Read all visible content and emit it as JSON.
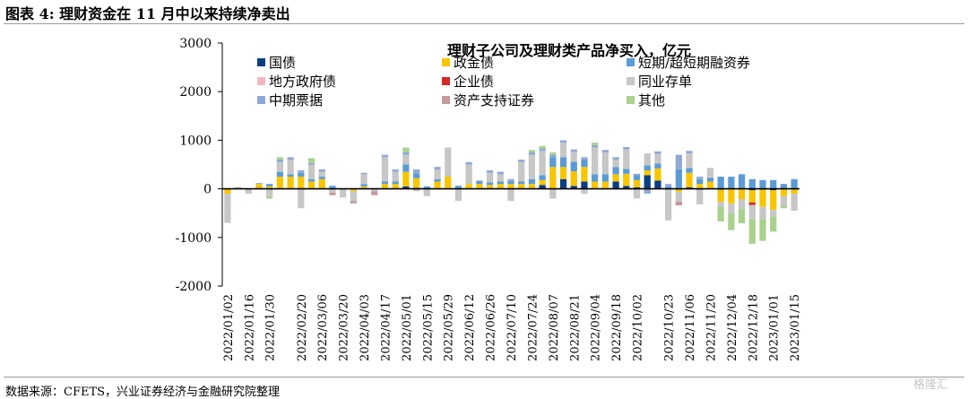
{
  "figure_label": "图表 4:  理财资金在 11 月中以来持续净卖出",
  "source_note": "数据来源：CFETS，兴业证券经济与金融研究院整理",
  "watermark": "格隆汇",
  "chart_data": {
    "type": "bar",
    "stacked": true,
    "title": "理财子公司及理财类产品净买入，亿元",
    "xlabel": "",
    "ylabel": "",
    "ylim": [
      -2000,
      3000
    ],
    "yticks": [
      -2000,
      -1000,
      0,
      1000,
      2000,
      3000
    ],
    "grid": false,
    "legend_position": "top",
    "categories": [
      "2022/01/02",
      "2022/01/09",
      "2022/01/16",
      "2022/01/23",
      "2022/01/30",
      "2022/02/06",
      "2022/02/13",
      "2022/02/20",
      "2022/02/27",
      "2022/03/06",
      "2022/03/13",
      "2022/03/20",
      "2022/03/27",
      "2022/04/03",
      "2022/04/10",
      "2022/04/17",
      "2022/04/24",
      "2022/05/01",
      "2022/05/08",
      "2022/05/15",
      "2022/05/22",
      "2022/05/29",
      "2022/06/05",
      "2022/06/12",
      "2022/06/19",
      "2022/06/26",
      "2022/07/03",
      "2022/07/10",
      "2022/07/17",
      "2022/07/24",
      "2022/07/31",
      "2022/08/07",
      "2022/08/14",
      "2022/08/21",
      "2022/08/28",
      "2022/09/04",
      "2022/09/11",
      "2022/09/18",
      "2022/09/25",
      "2022/10/02",
      "2022/10/09",
      "2022/10/16",
      "2022/10/23",
      "2022/10/30",
      "2022/11/06",
      "2022/11/13",
      "2022/11/20",
      "2022/11/27",
      "2022/12/04",
      "2022/12/11",
      "2022/12/18",
      "2022/12/25",
      "2023/01/01",
      "2023/01/08",
      "2023/01/15"
    ],
    "tick_labels": [
      "2022/01/02",
      "2022/01/16",
      "2022/01/30",
      "2022/02/20",
      "2022/03/06",
      "2022/03/20",
      "2022/04/03",
      "2022/04/17",
      "2022/05/01",
      "2022/05/15",
      "2022/05/29",
      "2022/06/12",
      "2022/06/26",
      "2022/07/10",
      "2022/07/24",
      "2022/08/07",
      "2022/08/21",
      "2022/09/04",
      "2022/09/18",
      "2022/10/02",
      "2022/10/23",
      "2022/11/06",
      "2022/11/20",
      "2022/12/04",
      "2022/12/18",
      "2023/01/01",
      "2023/01/15"
    ],
    "series": [
      {
        "name": "国债",
        "color": "#0b3d82",
        "values": [
          0,
          0,
          0,
          0,
          0,
          0,
          0,
          0,
          0,
          0,
          0,
          0,
          0,
          0,
          0,
          0,
          0,
          50,
          20,
          0,
          0,
          0,
          0,
          0,
          0,
          0,
          0,
          0,
          0,
          0,
          80,
          0,
          200,
          60,
          150,
          0,
          0,
          150,
          60,
          30,
          280,
          170,
          0,
          0,
          30,
          -20,
          0,
          -20,
          0,
          -10,
          -30,
          -20,
          -30,
          0,
          0
        ]
      },
      {
        "name": "政金债",
        "color": "#f7c600",
        "values": [
          -100,
          20,
          0,
          100,
          50,
          250,
          250,
          250,
          150,
          200,
          0,
          0,
          -50,
          50,
          0,
          100,
          100,
          300,
          200,
          0,
          150,
          250,
          0,
          100,
          100,
          80,
          100,
          100,
          100,
          100,
          100,
          450,
          250,
          300,
          300,
          150,
          150,
          150,
          250,
          150,
          100,
          250,
          0,
          -60,
          300,
          100,
          150,
          -250,
          -300,
          -200,
          -250,
          -350,
          -400,
          -150,
          -100
        ]
      },
      {
        "name": "短期/超短期融资券",
        "color": "#5b9bd5",
        "values": [
          0,
          0,
          0,
          0,
          50,
          100,
          50,
          80,
          50,
          50,
          50,
          0,
          0,
          50,
          0,
          50,
          50,
          150,
          100,
          50,
          50,
          0,
          50,
          0,
          50,
          50,
          50,
          50,
          50,
          100,
          100,
          200,
          200,
          200,
          150,
          150,
          150,
          150,
          100,
          100,
          100,
          100,
          50,
          400,
          100,
          100,
          80,
          250,
          250,
          300,
          200,
          180,
          180,
          100,
          200
        ]
      },
      {
        "name": "地方政府债",
        "color": "#f4b6c2",
        "values": [
          0,
          0,
          0,
          0,
          0,
          0,
          0,
          0,
          0,
          0,
          0,
          0,
          0,
          0,
          0,
          0,
          0,
          0,
          0,
          0,
          0,
          0,
          0,
          0,
          0,
          0,
          0,
          0,
          0,
          0,
          0,
          0,
          0,
          0,
          0,
          0,
          0,
          0,
          0,
          0,
          0,
          0,
          0,
          0,
          0,
          0,
          0,
          0,
          0,
          0,
          0,
          0,
          0,
          0,
          0
        ]
      },
      {
        "name": "企业债",
        "color": "#d62728",
        "values": [
          0,
          0,
          0,
          0,
          0,
          0,
          0,
          0,
          0,
          0,
          0,
          0,
          0,
          0,
          0,
          0,
          0,
          0,
          0,
          0,
          0,
          0,
          0,
          0,
          0,
          0,
          0,
          0,
          0,
          0,
          0,
          0,
          0,
          0,
          0,
          0,
          0,
          0,
          0,
          0,
          0,
          0,
          0,
          0,
          0,
          0,
          0,
          0,
          0,
          0,
          -50,
          0,
          0,
          0,
          0
        ]
      },
      {
        "name": "同业存单",
        "color": "#c7c7c7",
        "values": [
          -600,
          20,
          -100,
          0,
          -150,
          200,
          300,
          -400,
          300,
          100,
          -80,
          -180,
          -200,
          200,
          -50,
          500,
          200,
          200,
          -50,
          -150,
          200,
          600,
          -250,
          400,
          0,
          200,
          150,
          -250,
          400,
          500,
          500,
          -200,
          300,
          200,
          -100,
          550,
          450,
          150,
          400,
          -200,
          250,
          200,
          -650,
          -200,
          300,
          -300,
          200,
          -100,
          -200,
          -200,
          -300,
          -250,
          -150,
          -200,
          -350
        ]
      },
      {
        "name": "中期票据",
        "color": "#8ea9d6",
        "values": [
          0,
          0,
          0,
          20,
          0,
          50,
          50,
          50,
          30,
          50,
          20,
          0,
          0,
          30,
          0,
          50,
          50,
          50,
          80,
          0,
          50,
          0,
          20,
          50,
          20,
          50,
          50,
          50,
          50,
          50,
          50,
          50,
          50,
          50,
          50,
          50,
          50,
          50,
          50,
          30,
          -100,
          50,
          50,
          300,
          50,
          50,
          0,
          0,
          0,
          0,
          0,
          0,
          0,
          0,
          0
        ]
      },
      {
        "name": "资产支持证券",
        "color": "#c49a9a",
        "values": [
          0,
          0,
          0,
          0,
          0,
          0,
          0,
          0,
          0,
          0,
          -50,
          0,
          -50,
          0,
          -80,
          0,
          0,
          0,
          0,
          0,
          0,
          0,
          0,
          0,
          0,
          0,
          0,
          0,
          0,
          0,
          0,
          0,
          0,
          0,
          0,
          0,
          0,
          0,
          0,
          0,
          0,
          0,
          0,
          -80,
          0,
          0,
          0,
          0,
          0,
          0,
          0,
          0,
          0,
          0,
          0
        ]
      },
      {
        "name": "其他",
        "color": "#a9d18e",
        "values": [
          0,
          0,
          0,
          0,
          -50,
          50,
          0,
          0,
          100,
          0,
          0,
          0,
          0,
          0,
          0,
          0,
          0,
          100,
          0,
          0,
          0,
          0,
          0,
          0,
          0,
          0,
          0,
          0,
          0,
          50,
          50,
          50,
          0,
          0,
          0,
          50,
          0,
          0,
          0,
          0,
          0,
          0,
          0,
          0,
          0,
          0,
          0,
          -300,
          -350,
          -300,
          -500,
          -450,
          -300,
          -50,
          0
        ]
      }
    ]
  }
}
